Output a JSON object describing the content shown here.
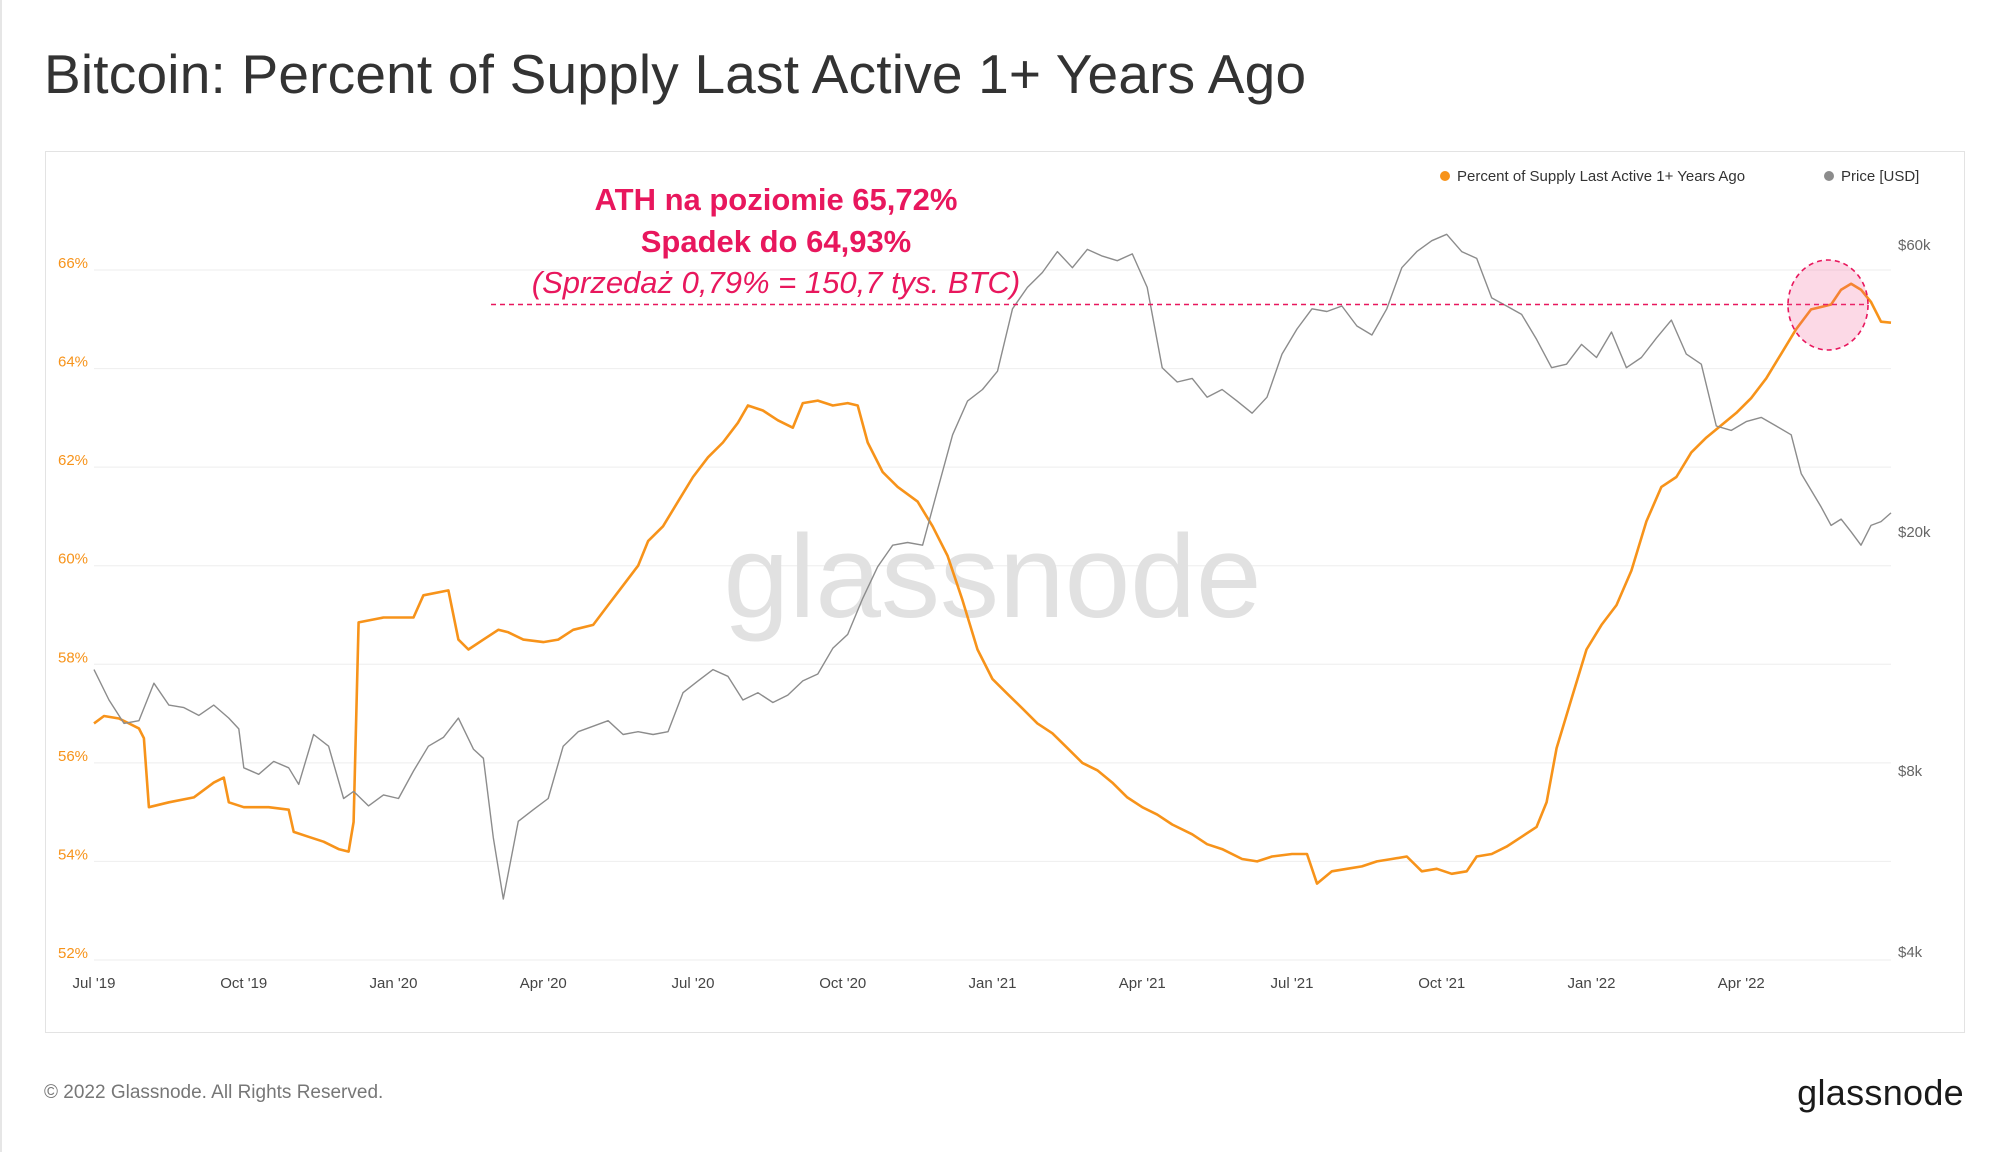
{
  "page": {
    "title": "Bitcoin: Percent of Supply Last Active 1+ Years Ago",
    "copyright": "© 2022 Glassnode. All Rights Reserved.",
    "logo_text": "glassnode",
    "watermark": "glassnode"
  },
  "chart_data": {
    "type": "line",
    "title": "Bitcoin: Percent of Supply Last Active 1+ Years Ago",
    "x_ticks": [
      "Jul '19",
      "Oct '19",
      "Jan '20",
      "Apr '20",
      "Jul '20",
      "Oct '20",
      "Jan '21",
      "Apr '21",
      "Jul '21",
      "Oct '21",
      "Jan '22",
      "Apr '22"
    ],
    "x_range": [
      0,
      36
    ],
    "y_left": {
      "ticks": [
        "52%",
        "54%",
        "56%",
        "58%",
        "60%",
        "62%",
        "64%",
        "66%"
      ],
      "range": [
        52,
        66.5
      ]
    },
    "y_right": {
      "ticks": [
        "$4k",
        "$8k",
        "$20k",
        "$60k"
      ],
      "range": [
        4000,
        60000
      ],
      "scale": "log"
    },
    "legend": [
      "Percent of Supply Last Active 1+ Years Ago",
      "Price [USD]"
    ],
    "legend_position": "top-right",
    "annotations": {
      "line1": "ATH na poziomie 65,72%",
      "line2": "Spadek do 64,93%",
      "line3": "(Sprzedaż 0,79% = 150,7 tys. BTC)",
      "reference_level": 65.3
    },
    "series": [
      {
        "name": "Percent of Supply Last Active 1+ Years Ago",
        "color": "#f7931a",
        "axis": "left",
        "points": [
          [
            0,
            56.8
          ],
          [
            0.2,
            56.95
          ],
          [
            0.5,
            56.9
          ],
          [
            0.9,
            56.7
          ],
          [
            1.0,
            56.5
          ],
          [
            1.1,
            55.1
          ],
          [
            1.5,
            55.2
          ],
          [
            2.0,
            55.3
          ],
          [
            2.4,
            55.6
          ],
          [
            2.6,
            55.7
          ],
          [
            2.7,
            55.2
          ],
          [
            3.0,
            55.1
          ],
          [
            3.5,
            55.1
          ],
          [
            3.9,
            55.05
          ],
          [
            4.0,
            54.6
          ],
          [
            4.3,
            54.5
          ],
          [
            4.6,
            54.4
          ],
          [
            4.9,
            54.25
          ],
          [
            5.1,
            54.2
          ],
          [
            5.2,
            54.8
          ],
          [
            5.3,
            58.85
          ],
          [
            5.8,
            58.95
          ],
          [
            6.4,
            58.95
          ],
          [
            6.6,
            59.4
          ],
          [
            7.1,
            59.5
          ],
          [
            7.3,
            58.5
          ],
          [
            7.5,
            58.3
          ],
          [
            7.8,
            58.5
          ],
          [
            8.1,
            58.7
          ],
          [
            8.3,
            58.65
          ],
          [
            8.6,
            58.5
          ],
          [
            9.0,
            58.45
          ],
          [
            9.3,
            58.5
          ],
          [
            9.6,
            58.7
          ],
          [
            10.0,
            58.8
          ],
          [
            10.3,
            59.2
          ],
          [
            10.6,
            59.6
          ],
          [
            10.9,
            60.0
          ],
          [
            11.1,
            60.5
          ],
          [
            11.4,
            60.8
          ],
          [
            11.7,
            61.3
          ],
          [
            12.0,
            61.8
          ],
          [
            12.3,
            62.2
          ],
          [
            12.6,
            62.5
          ],
          [
            12.9,
            62.9
          ],
          [
            13.1,
            63.25
          ],
          [
            13.4,
            63.15
          ],
          [
            13.7,
            62.95
          ],
          [
            14.0,
            62.8
          ],
          [
            14.2,
            63.3
          ],
          [
            14.5,
            63.35
          ],
          [
            14.8,
            63.25
          ],
          [
            15.1,
            63.3
          ],
          [
            15.3,
            63.25
          ],
          [
            15.5,
            62.5
          ],
          [
            15.8,
            61.9
          ],
          [
            16.1,
            61.6
          ],
          [
            16.5,
            61.3
          ],
          [
            16.8,
            60.8
          ],
          [
            17.1,
            60.2
          ],
          [
            17.4,
            59.3
          ],
          [
            17.7,
            58.3
          ],
          [
            18.0,
            57.7
          ],
          [
            18.3,
            57.4
          ],
          [
            18.6,
            57.1
          ],
          [
            18.9,
            56.8
          ],
          [
            19.2,
            56.6
          ],
          [
            19.5,
            56.3
          ],
          [
            19.8,
            56.0
          ],
          [
            20.1,
            55.85
          ],
          [
            20.4,
            55.6
          ],
          [
            20.7,
            55.3
          ],
          [
            21.0,
            55.1
          ],
          [
            21.3,
            54.95
          ],
          [
            21.6,
            54.75
          ],
          [
            22.0,
            54.55
          ],
          [
            22.3,
            54.35
          ],
          [
            22.6,
            54.25
          ],
          [
            23.0,
            54.05
          ],
          [
            23.3,
            54.0
          ],
          [
            23.6,
            54.1
          ],
          [
            24.0,
            54.15
          ],
          [
            24.3,
            54.15
          ],
          [
            24.5,
            53.55
          ],
          [
            24.8,
            53.8
          ],
          [
            25.1,
            53.85
          ],
          [
            25.4,
            53.9
          ],
          [
            25.7,
            54.0
          ],
          [
            26.0,
            54.05
          ],
          [
            26.3,
            54.1
          ],
          [
            26.6,
            53.8
          ],
          [
            26.9,
            53.85
          ],
          [
            27.2,
            53.75
          ],
          [
            27.5,
            53.8
          ],
          [
            27.7,
            54.1
          ],
          [
            28.0,
            54.15
          ],
          [
            28.3,
            54.3
          ],
          [
            28.6,
            54.5
          ],
          [
            28.9,
            54.7
          ],
          [
            29.1,
            55.2
          ],
          [
            29.3,
            56.3
          ],
          [
            29.6,
            57.3
          ],
          [
            29.9,
            58.3
          ],
          [
            30.2,
            58.8
          ],
          [
            30.5,
            59.2
          ],
          [
            30.8,
            59.9
          ],
          [
            31.1,
            60.9
          ],
          [
            31.4,
            61.6
          ],
          [
            31.7,
            61.8
          ],
          [
            32.0,
            62.3
          ],
          [
            32.3,
            62.6
          ],
          [
            32.6,
            62.85
          ],
          [
            32.9,
            63.1
          ],
          [
            33.2,
            63.4
          ],
          [
            33.5,
            63.8
          ],
          [
            33.8,
            64.3
          ],
          [
            34.1,
            64.8
          ],
          [
            34.4,
            65.2
          ],
          [
            34.6,
            65.25
          ],
          [
            34.8,
            65.3
          ],
          [
            35.0,
            65.6
          ],
          [
            35.2,
            65.72
          ],
          [
            35.4,
            65.6
          ],
          [
            35.6,
            65.35
          ],
          [
            35.8,
            64.95
          ],
          [
            36.0,
            64.93
          ]
        ]
      },
      {
        "name": "Price [USD]",
        "color": "#8c8c8c",
        "axis": "right",
        "points": [
          [
            0,
            11800
          ],
          [
            0.3,
            10500
          ],
          [
            0.6,
            9600
          ],
          [
            0.9,
            9700
          ],
          [
            1.2,
            11200
          ],
          [
            1.5,
            10300
          ],
          [
            1.8,
            10200
          ],
          [
            2.1,
            9900
          ],
          [
            2.4,
            10300
          ],
          [
            2.7,
            9800
          ],
          [
            2.9,
            9400
          ],
          [
            3.0,
            8100
          ],
          [
            3.3,
            7900
          ],
          [
            3.6,
            8300
          ],
          [
            3.9,
            8100
          ],
          [
            4.1,
            7600
          ],
          [
            4.4,
            9200
          ],
          [
            4.7,
            8800
          ],
          [
            5.0,
            7200
          ],
          [
            5.2,
            7400
          ],
          [
            5.5,
            7000
          ],
          [
            5.8,
            7300
          ],
          [
            6.1,
            7200
          ],
          [
            6.4,
            8000
          ],
          [
            6.7,
            8800
          ],
          [
            7.0,
            9100
          ],
          [
            7.3,
            9800
          ],
          [
            7.6,
            8700
          ],
          [
            7.8,
            8400
          ],
          [
            8.0,
            6200
          ],
          [
            8.2,
            4900
          ],
          [
            8.5,
            6600
          ],
          [
            8.8,
            6900
          ],
          [
            9.1,
            7200
          ],
          [
            9.4,
            8800
          ],
          [
            9.7,
            9300
          ],
          [
            10.0,
            9500
          ],
          [
            10.3,
            9700
          ],
          [
            10.6,
            9200
          ],
          [
            10.9,
            9300
          ],
          [
            11.2,
            9200
          ],
          [
            11.5,
            9300
          ],
          [
            11.8,
            10800
          ],
          [
            12.1,
            11300
          ],
          [
            12.4,
            11800
          ],
          [
            12.7,
            11500
          ],
          [
            13.0,
            10500
          ],
          [
            13.3,
            10800
          ],
          [
            13.6,
            10400
          ],
          [
            13.9,
            10700
          ],
          [
            14.2,
            11300
          ],
          [
            14.5,
            11600
          ],
          [
            14.8,
            12800
          ],
          [
            15.1,
            13500
          ],
          [
            15.4,
            15500
          ],
          [
            15.7,
            17500
          ],
          [
            16.0,
            19000
          ],
          [
            16.3,
            19200
          ],
          [
            16.6,
            19000
          ],
          [
            16.9,
            23500
          ],
          [
            17.2,
            29000
          ],
          [
            17.5,
            33000
          ],
          [
            17.8,
            34500
          ],
          [
            18.1,
            37000
          ],
          [
            18.4,
            47000
          ],
          [
            18.7,
            51000
          ],
          [
            19.0,
            54000
          ],
          [
            19.3,
            58500
          ],
          [
            19.6,
            55000
          ],
          [
            19.9,
            59000
          ],
          [
            20.2,
            57500
          ],
          [
            20.5,
            56500
          ],
          [
            20.8,
            58000
          ],
          [
            21.1,
            51000
          ],
          [
            21.4,
            37500
          ],
          [
            21.7,
            35500
          ],
          [
            22.0,
            36000
          ],
          [
            22.3,
            33500
          ],
          [
            22.6,
            34500
          ],
          [
            22.9,
            33000
          ],
          [
            23.2,
            31500
          ],
          [
            23.5,
            33500
          ],
          [
            23.8,
            39500
          ],
          [
            24.1,
            43500
          ],
          [
            24.4,
            47000
          ],
          [
            24.7,
            46500
          ],
          [
            25.0,
            47500
          ],
          [
            25.3,
            44000
          ],
          [
            25.6,
            42500
          ],
          [
            25.9,
            47000
          ],
          [
            26.2,
            55000
          ],
          [
            26.5,
            58500
          ],
          [
            26.8,
            61000
          ],
          [
            27.1,
            62500
          ],
          [
            27.4,
            58500
          ],
          [
            27.7,
            57000
          ],
          [
            28.0,
            49000
          ],
          [
            28.3,
            47500
          ],
          [
            28.6,
            46000
          ],
          [
            28.9,
            41800
          ],
          [
            29.2,
            37500
          ],
          [
            29.5,
            38000
          ],
          [
            29.8,
            41000
          ],
          [
            30.1,
            39000
          ],
          [
            30.4,
            43000
          ],
          [
            30.7,
            37500
          ],
          [
            31.0,
            39000
          ],
          [
            31.3,
            42000
          ],
          [
            31.6,
            45000
          ],
          [
            31.9,
            39500
          ],
          [
            32.2,
            38000
          ],
          [
            32.5,
            30000
          ],
          [
            32.8,
            29500
          ],
          [
            33.1,
            30500
          ],
          [
            33.4,
            31000
          ],
          [
            33.7,
            30000
          ],
          [
            34.0,
            29000
          ],
          [
            34.2,
            25000
          ],
          [
            34.6,
            22000
          ],
          [
            34.8,
            20500
          ],
          [
            35.0,
            21000
          ],
          [
            35.2,
            20000
          ],
          [
            35.4,
            19000
          ],
          [
            35.6,
            20500
          ],
          [
            35.8,
            20800
          ],
          [
            36.0,
            21500
          ]
        ]
      }
    ]
  }
}
